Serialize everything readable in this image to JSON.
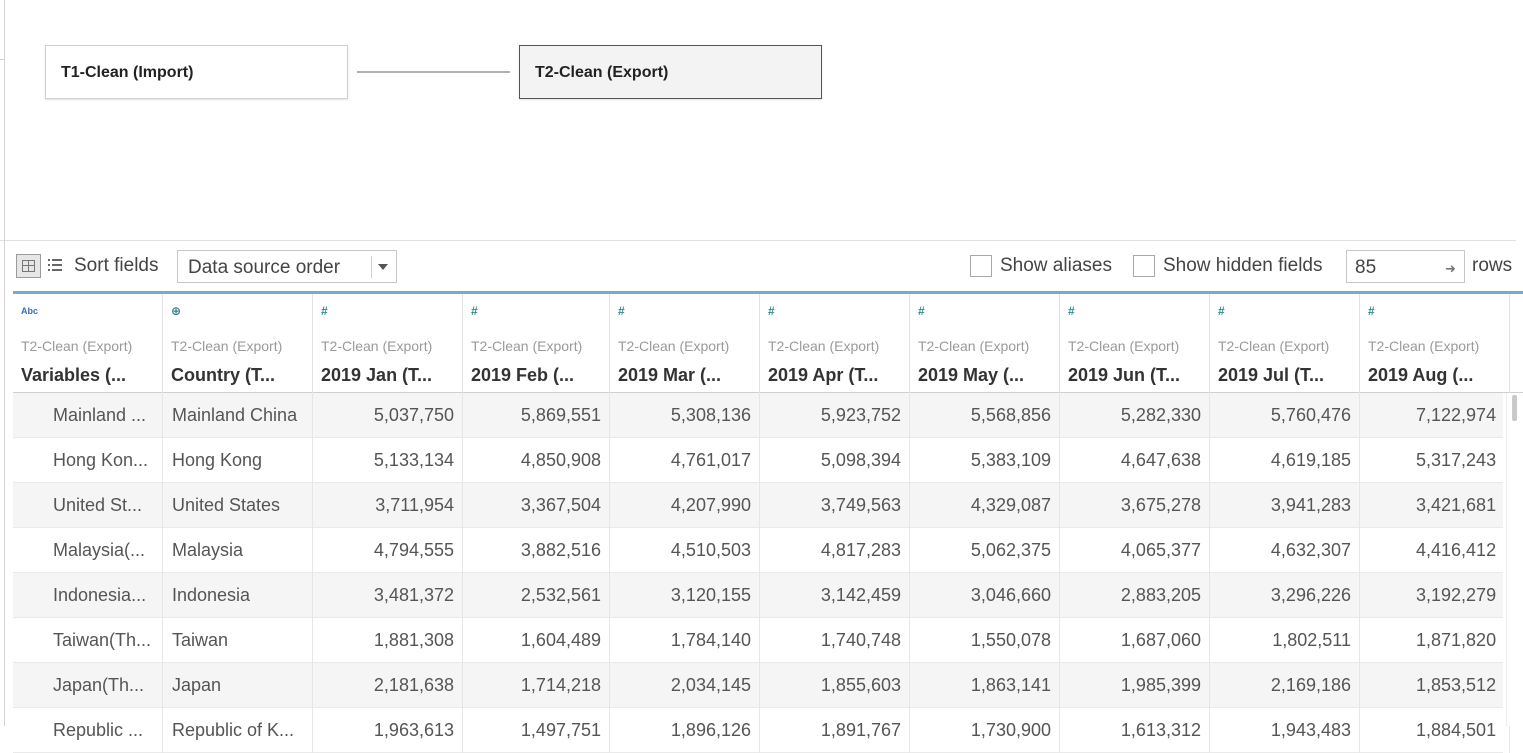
{
  "canvas": {
    "tables": [
      {
        "label": "T1-Clean (Import)"
      },
      {
        "label": "T2-Clean (Export)"
      }
    ]
  },
  "toolbar": {
    "sort_label": "Sort fields",
    "sort_value": "Data source order",
    "show_aliases": "Show aliases",
    "show_hidden": "Show hidden fields",
    "rows_value": "85",
    "rows_label": "rows"
  },
  "columns": [
    {
      "type": "Abc",
      "source": "T2-Clean (Export)",
      "name": "Variables (..."
    },
    {
      "type": "geo",
      "source": "T2-Clean (Export)",
      "name": "Country (T..."
    },
    {
      "type": "#",
      "source": "T2-Clean (Export)",
      "name": "2019 Jan (T..."
    },
    {
      "type": "#",
      "source": "T2-Clean (Export)",
      "name": "2019 Feb (..."
    },
    {
      "type": "#",
      "source": "T2-Clean (Export)",
      "name": "2019 Mar (..."
    },
    {
      "type": "#",
      "source": "T2-Clean (Export)",
      "name": "2019 Apr (T..."
    },
    {
      "type": "#",
      "source": "T2-Clean (Export)",
      "name": "2019 May (..."
    },
    {
      "type": "#",
      "source": "T2-Clean (Export)",
      "name": "2019 Jun (T..."
    },
    {
      "type": "#",
      "source": "T2-Clean (Export)",
      "name": "2019 Jul (T..."
    },
    {
      "type": "#",
      "source": "T2-Clean (Export)",
      "name": "2019 Aug (..."
    }
  ],
  "rows": [
    [
      "Mainland ...",
      "Mainland China",
      "5,037,750",
      "5,869,551",
      "5,308,136",
      "5,923,752",
      "5,568,856",
      "5,282,330",
      "5,760,476",
      "7,122,974"
    ],
    [
      "Hong Kon...",
      "Hong Kong",
      "5,133,134",
      "4,850,908",
      "4,761,017",
      "5,098,394",
      "5,383,109",
      "4,647,638",
      "4,619,185",
      "5,317,243"
    ],
    [
      "United St...",
      "United States",
      "3,711,954",
      "3,367,504",
      "4,207,990",
      "3,749,563",
      "4,329,087",
      "3,675,278",
      "3,941,283",
      "3,421,681"
    ],
    [
      "Malaysia(...",
      "Malaysia",
      "4,794,555",
      "3,882,516",
      "4,510,503",
      "4,817,283",
      "5,062,375",
      "4,065,377",
      "4,632,307",
      "4,416,412"
    ],
    [
      "Indonesia...",
      "Indonesia",
      "3,481,372",
      "2,532,561",
      "3,120,155",
      "3,142,459",
      "3,046,660",
      "2,883,205",
      "3,296,226",
      "3,192,279"
    ],
    [
      "Taiwan(Th...",
      "Taiwan",
      "1,881,308",
      "1,604,489",
      "1,784,140",
      "1,740,748",
      "1,550,078",
      "1,687,060",
      "1,802,511",
      "1,871,820"
    ],
    [
      "Japan(Th...",
      "Japan",
      "2,181,638",
      "1,714,218",
      "2,034,145",
      "1,855,603",
      "1,863,141",
      "1,985,399",
      "2,169,186",
      "1,853,512"
    ],
    [
      "Republic ...",
      "Republic of K...",
      "1,963,613",
      "1,497,751",
      "1,896,126",
      "1,891,767",
      "1,730,900",
      "1,613,312",
      "1,943,483",
      "1,884,501"
    ]
  ]
}
